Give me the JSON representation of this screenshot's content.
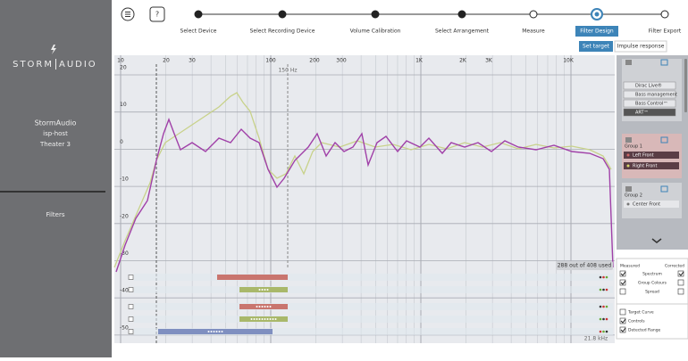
{
  "sidebar": {
    "logo_left": "STORM",
    "logo_right": "AUDIO",
    "device": "StormAudio",
    "host": "isp-host",
    "room": "Theater 3",
    "nav": "Filters"
  },
  "toolbar": {
    "help": "?"
  },
  "steps": [
    "Select Device",
    "Select Recording Device",
    "Volume Calibration",
    "Select Arrangement",
    "Measure",
    "Filter Design",
    "Filter Export"
  ],
  "tabs": [
    "Set target",
    "Impulse response"
  ],
  "graph": {
    "freq_labels": [
      "10",
      "20",
      "30",
      "100",
      "200",
      "300",
      "1K",
      "2K",
      "3K",
      "10K"
    ],
    "db_labels": [
      "20",
      "10",
      "0",
      "-10",
      "-20",
      "-30",
      "-40",
      "-50"
    ],
    "marker": "150 Hz",
    "usage": "288 out of 408 used",
    "max_freq": "21.8 kHz"
  },
  "panel": {
    "modules": [
      "Dirac Live®",
      "Bass management",
      "Bass Control™",
      "ART™"
    ],
    "groups": [
      {
        "name": "Group 1",
        "channels": [
          "Left Front",
          "Right Front"
        ]
      },
      {
        "name": "Group 2",
        "channels": [
          "Center Front"
        ]
      }
    ]
  },
  "display": {
    "measured": "Measured",
    "corrected": "Corrected",
    "rows": [
      "Spectrum",
      "Group Colours",
      "Spread"
    ],
    "options": [
      "Target Curve",
      "Controls",
      "Detected Range"
    ]
  }
}
